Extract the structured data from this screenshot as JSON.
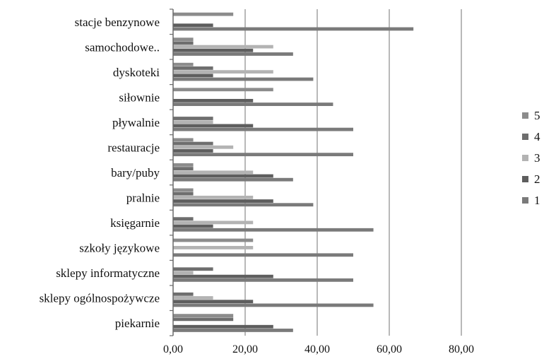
{
  "chart_data": {
    "type": "bar",
    "orientation": "horizontal",
    "categories": [
      "stacje benzynowe",
      "samochodowe..",
      "dyskoteki",
      "siłownie",
      "pływalnie",
      "restauracje",
      "bary/puby",
      "pralnie",
      "księgarnie",
      "szkoły językowe",
      "sklepy informatyczne",
      "sklepy ogólnospożywcze",
      "piekarnie"
    ],
    "series": [
      {
        "name": "5",
        "color": "#8c8c8c",
        "values": [
          16.7,
          5.6,
          5.6,
          27.8,
          0,
          5.6,
          5.6,
          5.6,
          0,
          22.2,
          0,
          0,
          16.7
        ]
      },
      {
        "name": "4",
        "color": "#6e6e6e",
        "values": [
          0,
          5.6,
          11.1,
          0,
          11.1,
          11.1,
          5.6,
          5.6,
          5.6,
          0,
          11.1,
          5.6,
          16.7
        ]
      },
      {
        "name": "3",
        "color": "#b3b3b3",
        "values": [
          0,
          27.8,
          27.8,
          0,
          11.1,
          16.7,
          22.2,
          22.2,
          22.2,
          22.2,
          5.6,
          11.1,
          0
        ]
      },
      {
        "name": "2",
        "color": "#5e5e5e",
        "values": [
          11.1,
          22.2,
          11.1,
          22.2,
          22.2,
          11.1,
          27.8,
          27.8,
          11.1,
          0,
          27.8,
          22.2,
          27.8
        ]
      },
      {
        "name": "1",
        "color": "#7a7a7a",
        "values": [
          66.7,
          33.3,
          38.9,
          44.4,
          50.0,
          50.0,
          33.3,
          38.9,
          55.6,
          50.0,
          50.0,
          55.6,
          33.3
        ]
      }
    ],
    "xlim": [
      0,
      80
    ],
    "xticks": [
      "0,00",
      "20,00",
      "40,00",
      "60,00",
      "80,00"
    ],
    "grid": "vertical",
    "legend": "right",
    "title": "",
    "xlabel": "",
    "ylabel": ""
  }
}
